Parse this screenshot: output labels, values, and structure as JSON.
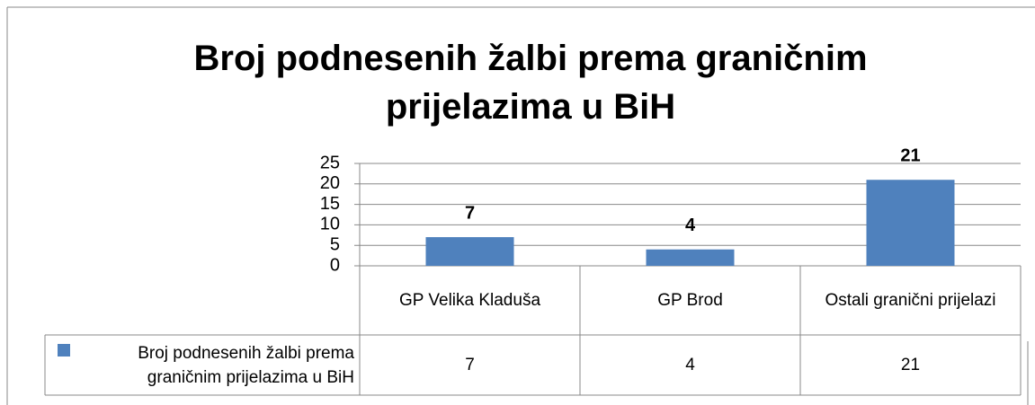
{
  "chart_data": {
    "type": "bar",
    "title": "Broj podnesenih žalbi prema graničnim prijelazima u BiH",
    "categories": [
      "GP Velika Kladuša",
      "GP Brod",
      "Ostali granični prijelazi"
    ],
    "series": [
      {
        "name": "Broj podnesenih žalbi prema graničnim prijelazima u BiH",
        "color": "#4f81bd",
        "values": [
          7,
          4,
          21
        ]
      }
    ],
    "ylim": [
      0,
      25
    ],
    "yticks": [
      0,
      5,
      10,
      15,
      20,
      25
    ],
    "grid": true,
    "data_table": true
  }
}
